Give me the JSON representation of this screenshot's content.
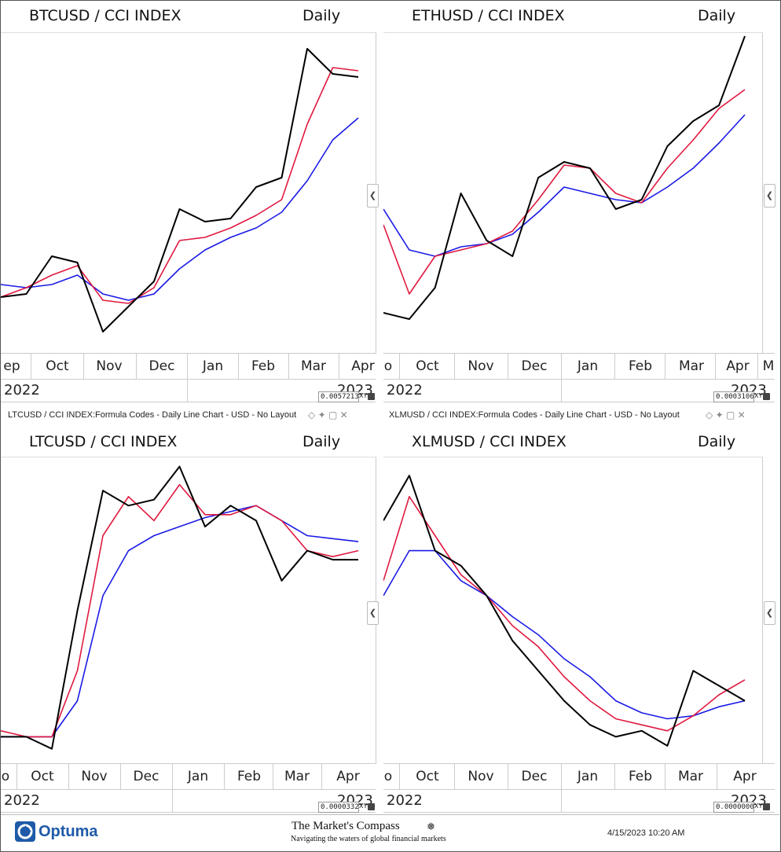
{
  "footer": {
    "brand": "Optuma",
    "publisher_title": "The Market's Compass",
    "publisher_tagline": "Navigating the waters of global financial markets",
    "timestamp": "4/15/2023 10:20 AM"
  },
  "colors": {
    "price": "#000000",
    "fast_ma": "#e0193f",
    "slow_ma": "#1a1ae6"
  },
  "panels": [
    {
      "title": "BTCUSD / CCI INDEX",
      "frequency": "Daily",
      "months": [
        "ep",
        "Oct",
        "Nov",
        "Dec",
        "Jan",
        "Feb",
        "Mar",
        "Apr"
      ],
      "year_left": "2022",
      "year_right": "2023",
      "value_box": "0.0057213",
      "xy_label": "XY",
      "caption": "LTCUSD / CCI INDEX:Formula Codes - Daily Line Chart - USD - No Layout"
    },
    {
      "title": "ETHUSD / CCI INDEX",
      "frequency": "Daily",
      "months": [
        "o",
        "Oct",
        "Nov",
        "Dec",
        "Jan",
        "Feb",
        "Mar",
        "Apr",
        "M"
      ],
      "year_left": "2022",
      "year_right": "2023",
      "value_box": "0.0003106",
      "xy_label": "XY",
      "caption": "XLMUSD / CCI INDEX:Formula Codes - Daily Line Chart - USD - No Layout"
    },
    {
      "title": "LTCUSD / CCI INDEX",
      "frequency": "Daily",
      "months": [
        "o",
        "Oct",
        "Nov",
        "Dec",
        "Jan",
        "Feb",
        "Mar",
        "Apr"
      ],
      "year_left": "2022",
      "year_right": "2023",
      "value_box": "0.0000332",
      "xy_label": "XY"
    },
    {
      "title": "XLMUSD / CCI INDEX",
      "frequency": "Daily",
      "months": [
        "o",
        "Oct",
        "Nov",
        "Dec",
        "Jan",
        "Feb",
        "Mar",
        "Apr"
      ],
      "year_left": "2022",
      "year_right": "2023",
      "value_box": "0.0000000",
      "xy_label": "XY"
    }
  ],
  "chart_data": [
    {
      "type": "line",
      "title": "BTCUSD / CCI INDEX",
      "frequency": "Daily",
      "x": [
        "Sep-15",
        "Oct-01",
        "Oct-15",
        "Nov-01",
        "Nov-15",
        "Dec-01",
        "Dec-15",
        "Jan-01",
        "Jan-15",
        "Feb-01",
        "Feb-15",
        "Mar-01",
        "Mar-15",
        "Apr-01",
        "Apr-14"
      ],
      "ylim": [
        0,
        100
      ],
      "series": [
        {
          "role": "price",
          "values": [
            17,
            18,
            30,
            28,
            6,
            14,
            22,
            45,
            41,
            42,
            52,
            55,
            96,
            88,
            87
          ]
        },
        {
          "role": "fast_ma",
          "values": [
            17,
            20,
            24,
            27,
            16,
            15,
            20,
            35,
            36,
            39,
            43,
            48,
            72,
            90,
            89
          ]
        },
        {
          "role": "slow_ma",
          "values": [
            21,
            20,
            21,
            24,
            18,
            16,
            18,
            26,
            32,
            36,
            39,
            44,
            54,
            67,
            74
          ]
        }
      ]
    },
    {
      "type": "line",
      "title": "ETHUSD / CCI INDEX",
      "frequency": "Daily",
      "x": [
        "Sep-15",
        "Oct-01",
        "Oct-15",
        "Nov-01",
        "Nov-15",
        "Dec-01",
        "Dec-15",
        "Jan-01",
        "Jan-15",
        "Feb-01",
        "Feb-15",
        "Mar-01",
        "Mar-15",
        "Apr-01",
        "Apr-14"
      ],
      "ylim": [
        0,
        100
      ],
      "series": [
        {
          "role": "price",
          "values": [
            12,
            10,
            20,
            50,
            35,
            30,
            55,
            60,
            58,
            45,
            48,
            65,
            73,
            78,
            100
          ]
        },
        {
          "role": "fast_ma",
          "values": [
            40,
            18,
            30,
            32,
            34,
            38,
            48,
            59,
            58,
            50,
            47,
            58,
            67,
            77,
            83
          ]
        },
        {
          "role": "slow_ma",
          "values": [
            45,
            32,
            30,
            33,
            34,
            37,
            44,
            52,
            50,
            48,
            47,
            52,
            58,
            66,
            75
          ]
        }
      ]
    },
    {
      "type": "line",
      "title": "LTCUSD / CCI INDEX",
      "frequency": "Daily",
      "x": [
        "Sep-15",
        "Oct-01",
        "Oct-15",
        "Nov-01",
        "Nov-15",
        "Dec-01",
        "Dec-15",
        "Jan-01",
        "Jan-15",
        "Feb-01",
        "Feb-15",
        "Mar-01",
        "Mar-15",
        "Apr-01",
        "Apr-08"
      ],
      "ylim": [
        0,
        100
      ],
      "series": [
        {
          "role": "price",
          "values": [
            8,
            8,
            4,
            50,
            90,
            85,
            87,
            98,
            78,
            85,
            80,
            60,
            70,
            67,
            67
          ]
        },
        {
          "role": "fast_ma",
          "values": [
            10,
            8,
            8,
            30,
            75,
            88,
            80,
            92,
            82,
            82,
            85,
            80,
            70,
            68,
            70
          ]
        },
        {
          "role": "slow_ma",
          "values": [
            8,
            8,
            8,
            20,
            55,
            70,
            75,
            78,
            81,
            83,
            85,
            80,
            75,
            74,
            73
          ]
        }
      ]
    },
    {
      "type": "line",
      "title": "XLMUSD / CCI INDEX",
      "frequency": "Daily",
      "x": [
        "Sep-15",
        "Oct-01",
        "Oct-15",
        "Nov-01",
        "Nov-15",
        "Dec-01",
        "Dec-15",
        "Jan-01",
        "Jan-15",
        "Feb-01",
        "Feb-15",
        "Mar-01",
        "Mar-15",
        "Apr-01",
        "Apr-14"
      ],
      "ylim": [
        0,
        100
      ],
      "series": [
        {
          "role": "price",
          "values": [
            80,
            95,
            70,
            65,
            55,
            40,
            30,
            20,
            12,
            8,
            10,
            5,
            30,
            25,
            20
          ]
        },
        {
          "role": "fast_ma",
          "values": [
            60,
            88,
            75,
            62,
            55,
            45,
            38,
            28,
            20,
            14,
            12,
            10,
            15,
            22,
            27
          ]
        },
        {
          "role": "slow_ma",
          "values": [
            55,
            70,
            70,
            60,
            55,
            48,
            42,
            34,
            28,
            20,
            16,
            14,
            15,
            18,
            20
          ]
        }
      ]
    }
  ]
}
